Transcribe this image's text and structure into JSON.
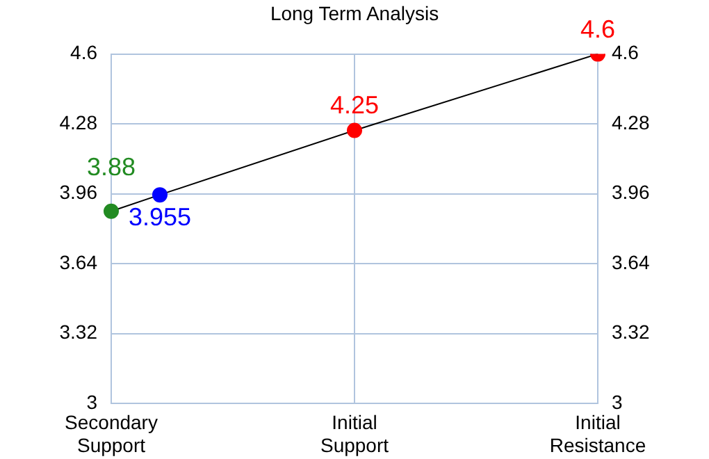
{
  "chart_data": {
    "type": "line",
    "title": "Long Term Analysis",
    "categories": [
      "Secondary Support",
      null,
      null,
      null,
      null,
      "Initial Support",
      null,
      null,
      null,
      null,
      "Initial Resistance"
    ],
    "values": [
      3.88,
      3.955,
      null,
      null,
      null,
      4.25,
      null,
      null,
      null,
      null,
      4.6
    ],
    "color": "#000000",
    "colors": [
      "#228b22",
      "#0000ff",
      null,
      null,
      null,
      "#ff0000",
      null,
      null,
      null,
      null,
      "#ff0000"
    ],
    "ylim": [
      3,
      4.6
    ],
    "yticks": [
      3,
      3.32,
      3.64,
      3.96,
      4.28,
      4.6
    ],
    "y2lim": [
      3,
      4.6
    ],
    "y2ticks": [
      3,
      3.32,
      3.64,
      3.96,
      4.28,
      4.6
    ],
    "grid": true,
    "marker": "circle",
    "line_style": "solid",
    "data_labels": true
  }
}
